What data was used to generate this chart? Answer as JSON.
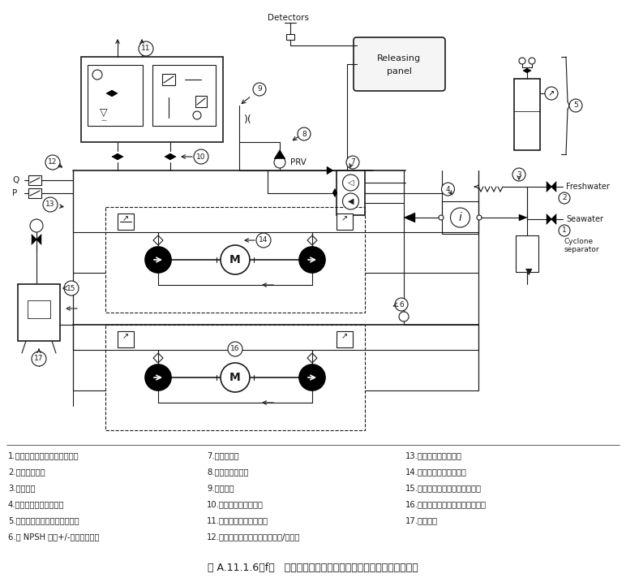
{
  "title": "图 A.11.1.6（f）   带卸压阀的容积式泵组细水雾系统示意图（典型）",
  "background_color": "#ffffff",
  "col1_items": [
    "1.接供海水装置，带旋流分离器",
    "2.接供淡水装置",
    "3.倒流装置",
    "4.过滤器或带旁路的筛子",
    "5.供气装置和备用稳压泵调节器",
    "6.带 NPSH 计（+/-）的吸入支管"
  ],
  "col2_items": [
    "7.备用气动泵",
    "8.减压阀（可选）",
    "9.接流量计",
    "10.隔离阀（配区域阀）",
    "11.螺线管传动区域控制阀",
    "12.连接控制器的压力和流量开关/转换器"
  ],
  "col3_items": [
    "13.带压力表的卸出支管",
    "14.卸压阀（每个泵一个）",
    "15.卸压阀排水支管（至输水槽）",
    "16.容积式泵（一个马达对应一个）",
    "17.泵控制器"
  ]
}
